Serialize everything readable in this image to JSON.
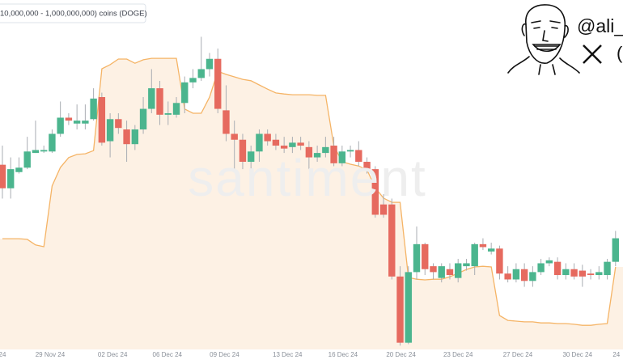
{
  "chart_data": {
    "type": "candlestick",
    "watermark": "santiment",
    "author": "@ali_",
    "author_fragment": "(",
    "xlim": [
      -0.29,
      74.9
    ],
    "xticks": [
      {
        "value": 0,
        "label": "24"
      },
      {
        "value": 5.76,
        "label": "29 Nov 24"
      },
      {
        "value": 13.3,
        "label": "02 Dec 24"
      },
      {
        "value": 19.9,
        "label": "06 Dec 24"
      },
      {
        "value": 26.8,
        "label": "09 Dec 24"
      },
      {
        "value": 34.4,
        "label": "13 Dec 24"
      },
      {
        "value": 41.1,
        "label": "16 Dec 24"
      },
      {
        "value": 48.1,
        "label": "20 Dec 24"
      },
      {
        "value": 55.0,
        "label": "23 Dec 24"
      },
      {
        "value": 62.2,
        "label": "27 Dec 24"
      },
      {
        "value": 69.4,
        "label": "30 Dec 24"
      },
      {
        "value": 74.1,
        "label": "24"
      }
    ],
    "ylim": [
      0.27,
      0.5
    ],
    "y2lim": [
      0,
      100
    ],
    "series": [
      {
        "type": "area",
        "name": "10,000,000 - 1,000,000,000) coins (DOGE)",
        "axis": "y2",
        "color": "#f5b466",
        "fill": "#fdf1e4",
        "values": [
          31.7,
          31.7,
          31.7,
          31.5,
          29.9,
          29.4,
          46.8,
          52.1,
          54.9,
          55.8,
          56.0,
          56.9,
          80.3,
          81.5,
          83.1,
          83.1,
          81.9,
          82.9,
          83.3,
          83.3,
          83.3,
          83.3,
          68.8,
          67.6,
          67.6,
          72.2,
          79.6,
          78.7,
          78.0,
          77.3,
          76.9,
          75.7,
          74.5,
          73.4,
          73.1,
          72.9,
          72.9,
          72.9,
          72.7,
          72.7,
          58.3,
          53.7,
          53.0,
          52.5,
          51.4,
          46.3,
          43.3,
          42.1,
          42.1,
          20.6,
          20.1,
          19.9,
          20.1,
          20.1,
          20.8,
          21.8,
          22.9,
          23.6,
          23.8,
          23.6,
          9.7,
          8.3,
          8.1,
          7.9,
          7.9,
          7.6,
          7.6,
          7.4,
          7.4,
          7.2,
          6.9,
          6.9,
          7.2,
          7.4,
          23.6
        ]
      },
      {
        "type": "candlestick",
        "up_color": "#4bb58e",
        "down_color": "#e66a5f",
        "open": [
          0.393,
          0.377,
          0.388,
          0.391,
          0.401,
          0.402,
          0.402,
          0.414,
          0.425,
          0.421,
          0.421,
          0.424,
          0.439,
          0.409,
          0.424,
          0.417,
          0.407,
          0.417,
          0.431,
          0.445,
          0.427,
          0.427,
          0.435,
          0.449,
          0.452,
          0.458,
          0.465,
          0.43,
          0.414,
          0.41,
          0.395,
          0.402,
          0.414,
          0.41,
          0.406,
          0.405,
          0.408,
          0.405,
          0.398,
          0.401,
          0.406,
          0.394,
          0.402,
          0.403,
          0.395,
          0.39,
          0.366,
          0.366,
          0.317,
          0.272,
          0.32,
          0.339,
          0.324,
          0.316,
          0.322,
          0.316,
          0.324,
          0.324,
          0.339,
          0.334,
          0.336,
          0.319,
          0.315,
          0.322,
          0.314,
          0.32,
          0.326,
          0.327,
          0.318,
          0.322,
          0.321,
          0.319,
          0.318,
          0.318,
          0.327
        ],
        "high": [
          0.406,
          0.398,
          0.398,
          0.412,
          0.423,
          0.406,
          0.417,
          0.436,
          0.428,
          0.434,
          0.434,
          0.445,
          0.442,
          0.428,
          0.428,
          0.423,
          0.42,
          0.439,
          0.458,
          0.45,
          0.436,
          0.439,
          0.453,
          0.458,
          0.48,
          0.469,
          0.472,
          0.447,
          0.423,
          0.414,
          0.406,
          0.417,
          0.417,
          0.414,
          0.412,
          0.412,
          0.412,
          0.409,
          0.406,
          0.412,
          0.412,
          0.406,
          0.406,
          0.409,
          0.398,
          0.392,
          0.373,
          0.37,
          0.324,
          0.324,
          0.351,
          0.34,
          0.326,
          0.326,
          0.326,
          0.329,
          0.329,
          0.34,
          0.343,
          0.34,
          0.338,
          0.324,
          0.326,
          0.326,
          0.324,
          0.329,
          0.33,
          0.33,
          0.326,
          0.326,
          0.325,
          0.322,
          0.324,
          0.329,
          0.348
        ],
        "low": [
          0.37,
          0.37,
          0.387,
          0.39,
          0.401,
          0.401,
          0.401,
          0.412,
          0.42,
          0.417,
          0.417,
          0.423,
          0.406,
          0.398,
          0.414,
          0.395,
          0.403,
          0.414,
          0.428,
          0.42,
          0.42,
          0.425,
          0.428,
          0.445,
          0.45,
          0.453,
          0.428,
          0.409,
          0.39,
          0.39,
          0.387,
          0.395,
          0.406,
          0.403,
          0.401,
          0.401,
          0.403,
          0.39,
          0.395,
          0.398,
          0.392,
          0.392,
          0.398,
          0.392,
          0.387,
          0.357,
          0.357,
          0.315,
          0.27,
          0.271,
          0.315,
          0.318,
          0.315,
          0.313,
          0.315,
          0.313,
          0.321,
          0.318,
          0.335,
          0.332,
          0.315,
          0.313,
          0.313,
          0.31,
          0.31,
          0.318,
          0.324,
          0.315,
          0.315,
          0.315,
          0.31,
          0.315,
          0.315,
          0.315,
          0.324
        ],
        "close": [
          0.377,
          0.39,
          0.391,
          0.402,
          0.403,
          0.403,
          0.414,
          0.425,
          0.423,
          0.423,
          0.423,
          0.438,
          0.408,
          0.424,
          0.418,
          0.407,
          0.417,
          0.431,
          0.445,
          0.427,
          0.428,
          0.435,
          0.449,
          0.452,
          0.458,
          0.465,
          0.431,
          0.414,
          0.41,
          0.395,
          0.402,
          0.414,
          0.409,
          0.406,
          0.404,
          0.408,
          0.406,
          0.398,
          0.401,
          0.405,
          0.394,
          0.402,
          0.403,
          0.395,
          0.39,
          0.359,
          0.359,
          0.317,
          0.272,
          0.32,
          0.339,
          0.322,
          0.32,
          0.324,
          0.318,
          0.326,
          0.326,
          0.339,
          0.337,
          0.336,
          0.319,
          0.315,
          0.322,
          0.314,
          0.32,
          0.326,
          0.328,
          0.318,
          0.322,
          0.317,
          0.317,
          0.318,
          0.32,
          0.327,
          0.343
        ]
      }
    ]
  }
}
